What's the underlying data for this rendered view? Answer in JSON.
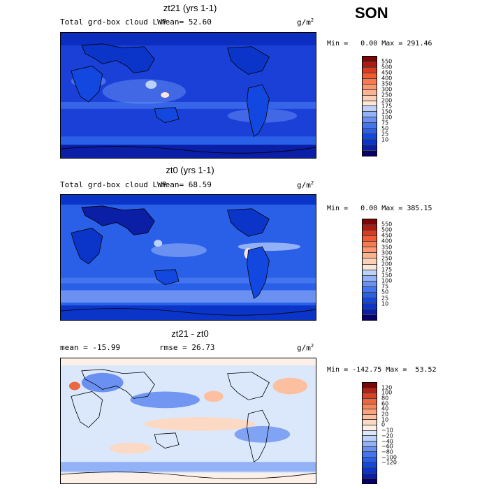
{
  "season": "SON",
  "panels": [
    {
      "title": "zt21 (yrs 1-1)",
      "left_label": "Total grd-box cloud LWP",
      "stat_label": "mean=  52.60",
      "units": "g/m",
      "units_exp": "2",
      "minmax": "Min =   0.00 Max = 291.46",
      "colors": [
        "#08006a",
        "#0a1ea6",
        "#0b35c8",
        "#1348e0",
        "#2a5fe8",
        "#4475ee",
        "#6a90f2",
        "#92b1f6",
        "#bcd2fa",
        "#fbe6d8",
        "#fcd0b6",
        "#fdb38f",
        "#fc9670",
        "#f97a50",
        "#f25b32",
        "#d83b20",
        "#ad1a10",
        "#7d0505"
      ],
      "bar_labels": [
        "550",
        "500",
        "450",
        "400",
        "350",
        "300",
        "250",
        "200",
        "175",
        "150",
        "100",
        "75",
        "50",
        "25",
        "10"
      ]
    },
    {
      "title": "zt0 (yrs 1-1)",
      "left_label": "Total grd-box cloud LWP",
      "stat_label": "mean=  68.59",
      "units": "g/m",
      "units_exp": "2",
      "minmax": "Min =   0.00 Max = 385.15",
      "colors": [
        "#08006a",
        "#0a1ea6",
        "#0b35c8",
        "#1348e0",
        "#2a5fe8",
        "#4475ee",
        "#6a90f2",
        "#92b1f6",
        "#bcd2fa",
        "#fbe6d8",
        "#fcd0b6",
        "#fdb38f",
        "#fc9670",
        "#f97a50",
        "#f25b32",
        "#d83b20",
        "#ad1a10",
        "#7d0505"
      ],
      "bar_labels": [
        "550",
        "500",
        "450",
        "400",
        "350",
        "300",
        "250",
        "200",
        "175",
        "150",
        "100",
        "75",
        "50",
        "25",
        "10"
      ]
    },
    {
      "title": "zt21 - zt0",
      "left_label": "mean = -15.99",
      "stat_label": "rmse =  26.73",
      "units": "g/m",
      "units_exp": "2",
      "minmax": "Min = -142.75 Max =  53.52",
      "colors": [
        "#08006a",
        "#0a1ea6",
        "#0b35c8",
        "#1348e0",
        "#2a5fe8",
        "#4475ee",
        "#6a90f2",
        "#92b1f6",
        "#bcd2fa",
        "#dbe8fb",
        "#fdf0e8",
        "#fbd9c4",
        "#fcc0a0",
        "#fca37e",
        "#f7855c",
        "#ec6640",
        "#d54426",
        "#b02212",
        "#7d0505"
      ],
      "bar_labels": [
        "120",
        "100",
        "80",
        "60",
        "40",
        "20",
        "10",
        "0",
        "−10",
        "−20",
        "−40",
        "−60",
        "−80",
        "−100",
        "−120"
      ]
    }
  ]
}
